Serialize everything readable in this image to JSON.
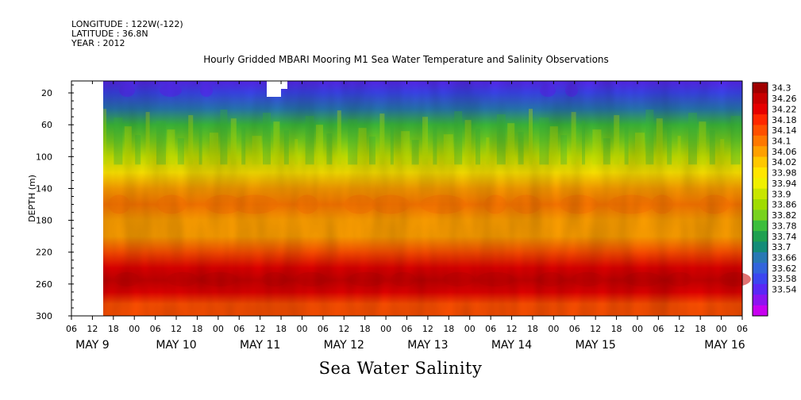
{
  "meta": {
    "longitude": "LONGITUDE : 122W(-122)",
    "latitude": "LATITUDE : 36.8N",
    "year": "YEAR : 2012"
  },
  "title": "Hourly Gridded MBARI Mooring M1 Sea Water Temperature and Salinity Observations",
  "footer_title": "Sea Water Salinity",
  "chart_data": {
    "type": "heatmap",
    "variable": "Sea Water Salinity",
    "ylabel": "DEPTH (m)",
    "y_inverted": true,
    "ylim": [
      300,
      5
    ],
    "y_ticks": [
      20,
      60,
      100,
      140,
      180,
      220,
      260,
      300
    ],
    "x_hour_ticks": [
      "06",
      "12",
      "18",
      "00",
      "06",
      "12",
      "18",
      "00",
      "06",
      "12",
      "18",
      "00",
      "06",
      "12",
      "18",
      "00",
      "06",
      "12",
      "18",
      "00",
      "06",
      "12",
      "18",
      "00",
      "06",
      "12",
      "18",
      "00",
      "06",
      "12",
      "18",
      "00",
      "06"
    ],
    "x_day_labels": [
      "MAY  9",
      "MAY 10",
      "MAY 11",
      "MAY 12",
      "MAY 13",
      "MAY 14",
      "MAY 15",
      "MAY 16"
    ],
    "data_start": "MAY 9 13:00",
    "depth_profile": [
      {
        "depth": 5,
        "value": 33.64
      },
      {
        "depth": 20,
        "value": 33.66
      },
      {
        "depth": 40,
        "value": 33.74
      },
      {
        "depth": 60,
        "value": 33.82
      },
      {
        "depth": 80,
        "value": 33.88
      },
      {
        "depth": 100,
        "value": 33.93
      },
      {
        "depth": 120,
        "value": 34.0
      },
      {
        "depth": 140,
        "value": 34.06
      },
      {
        "depth": 160,
        "value": 34.11
      },
      {
        "depth": 180,
        "value": 34.08
      },
      {
        "depth": 200,
        "value": 34.06
      },
      {
        "depth": 220,
        "value": 34.14
      },
      {
        "depth": 240,
        "value": 34.22
      },
      {
        "depth": 255,
        "value": 34.26
      },
      {
        "depth": 270,
        "value": 34.22
      },
      {
        "depth": 285,
        "value": 34.16
      },
      {
        "depth": 300,
        "value": 34.14
      }
    ],
    "colorbar": {
      "levels": [
        "34.3",
        "34.26",
        "34.22",
        "34.18",
        "34.14",
        "34.1",
        "34.06",
        "34.02",
        "33.98",
        "33.94",
        "33.9",
        "33.86",
        "33.82",
        "33.78",
        "33.74",
        "33.7",
        "33.66",
        "33.62",
        "33.58",
        "33.54"
      ],
      "colors_top_to_bottom": [
        "#a00000",
        "#c80000",
        "#e60000",
        "#ff2800",
        "#ff5000",
        "#ff7800",
        "#ffa000",
        "#ffc800",
        "#ffe600",
        "#f0f000",
        "#c8e600",
        "#a0dc00",
        "#78d21e",
        "#3cbe3c",
        "#1ea050",
        "#148c78",
        "#2878b4",
        "#3264dc",
        "#3c46f0",
        "#5a28f5",
        "#8c14f0",
        "#c800f0"
      ]
    }
  }
}
